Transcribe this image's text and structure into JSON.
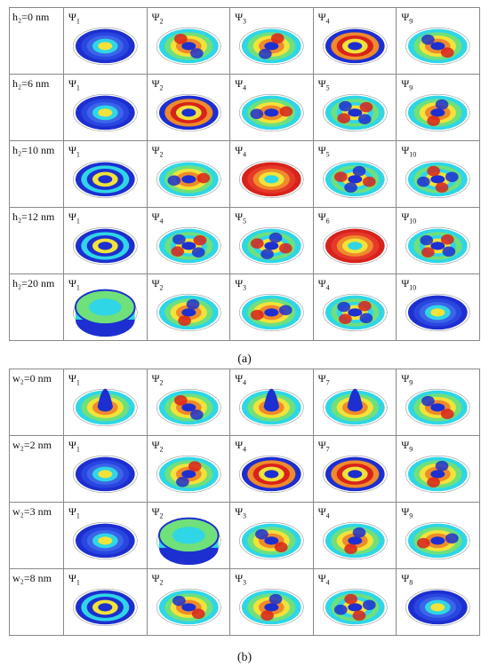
{
  "panels": [
    {
      "caption": "(a)",
      "rows": [
        {
          "label": "h₂=0 nm",
          "states": [
            "1",
            "2",
            "3",
            "4",
            "9"
          ],
          "palettes": [
            "blue",
            "mixed",
            "mixed",
            "ring",
            "mixed"
          ]
        },
        {
          "label": "h₂=6 nm",
          "states": [
            "1",
            "2",
            "4",
            "5",
            "9"
          ],
          "palettes": [
            "blue",
            "ring",
            "mixed",
            "lobes",
            "mixed"
          ]
        },
        {
          "label": "h₂=10 nm",
          "states": [
            "1",
            "2",
            "4",
            "5",
            "10"
          ],
          "palettes": [
            "rings",
            "mixed",
            "red",
            "lobes",
            "lobes"
          ]
        },
        {
          "label": "h₂=12 nm",
          "states": [
            "1",
            "4",
            "5",
            "6",
            "10"
          ],
          "palettes": [
            "rings",
            "lobes",
            "lobes",
            "red",
            "lobes"
          ]
        },
        {
          "label": "h₂=20 nm",
          "states": [
            "1",
            "2",
            "3",
            "4",
            "10"
          ],
          "palettes": [
            "cyl",
            "mixed",
            "mixed",
            "lobes",
            "blue"
          ]
        }
      ]
    },
    {
      "caption": "(b)",
      "rows": [
        {
          "label": "w₂=0 nm",
          "states": [
            "1",
            "2",
            "4",
            "7",
            "9"
          ],
          "palettes": [
            "peak",
            "mixed",
            "peak",
            "peak",
            "mixed"
          ]
        },
        {
          "label": "w₂=2 nm",
          "states": [
            "1",
            "2",
            "4",
            "7",
            "9"
          ],
          "palettes": [
            "blue",
            "mixed",
            "ring",
            "ring",
            "mixed"
          ]
        },
        {
          "label": "w₂=3 nm",
          "states": [
            "1",
            "2",
            "3",
            "4",
            "9"
          ],
          "palettes": [
            "blue",
            "cyl",
            "mixed",
            "mixed",
            "mixed"
          ]
        },
        {
          "label": "w₂=8 nm",
          "states": [
            "1",
            "2",
            "3",
            "4",
            "8"
          ],
          "palettes": [
            "rings",
            "mixed",
            "mixed",
            "lobes",
            "blue"
          ]
        }
      ]
    }
  ],
  "psi_symbol": "Ψ",
  "colors": {
    "blue": "#1d2fd0",
    "cyan": "#2fd6e6",
    "green": "#6fe07a",
    "yellow": "#f2e23a",
    "orange": "#f08a2a",
    "red": "#d8221c"
  }
}
